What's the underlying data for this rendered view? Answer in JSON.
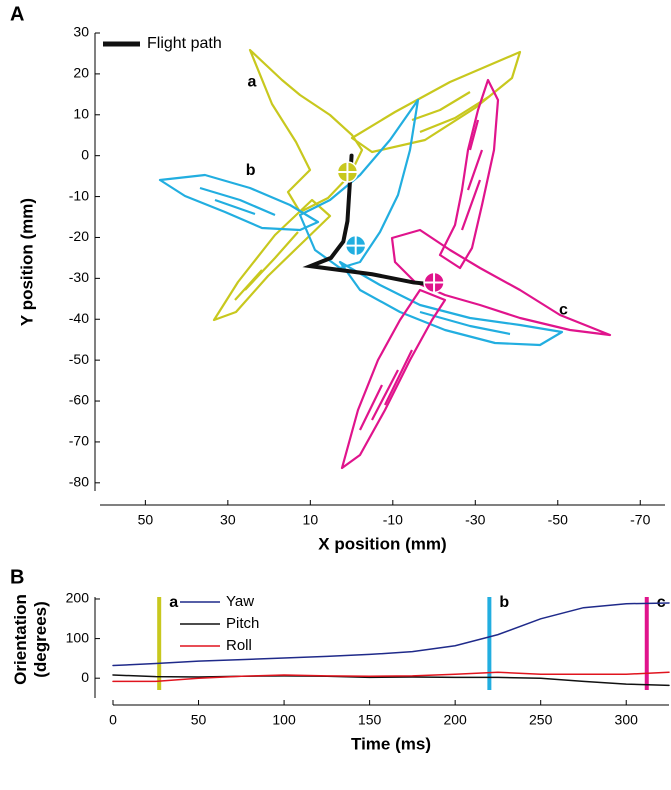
{
  "chart_data": [
    {
      "type": "line",
      "panel_label": "A",
      "x_label": "X position (mm)",
      "y_label": "Y position (mm)",
      "xlim": [
        61,
        -76
      ],
      "ylim": [
        -82,
        30
      ],
      "xticks": [
        50,
        30,
        10,
        -10,
        -30,
        -50,
        -70
      ],
      "yticks": [
        30,
        20,
        10,
        0,
        -10,
        -20,
        -30,
        -40,
        -50,
        -60,
        -70,
        -80
      ],
      "x": [
        0,
        0.5,
        1,
        2,
        5,
        10,
        -5,
        -15,
        -20
      ],
      "series": [
        {
          "name": "Flight path",
          "color": "#111111",
          "values": [
            0,
            -8,
            -16,
            -21,
            -25,
            -27,
            -29,
            -31,
            -31.5
          ]
        }
      ],
      "positions": {
        "labels": [
          "a",
          "b",
          "c"
        ],
        "x": [
          1,
          -1,
          -20
        ],
        "y": [
          -4,
          -22,
          -31
        ],
        "colors": [
          "#c8c81e",
          "#22aee0",
          "#e0148c"
        ]
      }
    },
    {
      "type": "line",
      "panel_label": "B",
      "x_label": "Time (ms)",
      "y_label": "Orientation (degrees)",
      "xlim": [
        0,
        325
      ],
      "ylim": [
        -50,
        205
      ],
      "xticks": [
        0,
        50,
        100,
        150,
        200,
        250,
        300
      ],
      "yticks": [
        0,
        100,
        200
      ],
      "x": [
        0,
        25,
        50,
        75,
        100,
        125,
        150,
        175,
        200,
        225,
        250,
        275,
        300,
        325
      ],
      "series": [
        {
          "name": "Yaw",
          "color": "#1f2a8a",
          "values": [
            32,
            37,
            43,
            47,
            51,
            55,
            60,
            67,
            82,
            110,
            150,
            178,
            188,
            190
          ]
        },
        {
          "name": "Pitch",
          "color": "#111111",
          "values": [
            8,
            4,
            3,
            5,
            6,
            5,
            2,
            3,
            2,
            2,
            0,
            -8,
            -15,
            -18
          ]
        },
        {
          "name": "Roll",
          "color": "#e0141e",
          "values": [
            -8,
            -8,
            0,
            5,
            8,
            6,
            5,
            6,
            10,
            15,
            10,
            10,
            10,
            15
          ]
        }
      ],
      "events": {
        "labels": [
          "a",
          "b",
          "c"
        ],
        "x": [
          27,
          220,
          312
        ],
        "colors": [
          "#c8c81e",
          "#22aee0",
          "#e0148c"
        ]
      }
    }
  ]
}
